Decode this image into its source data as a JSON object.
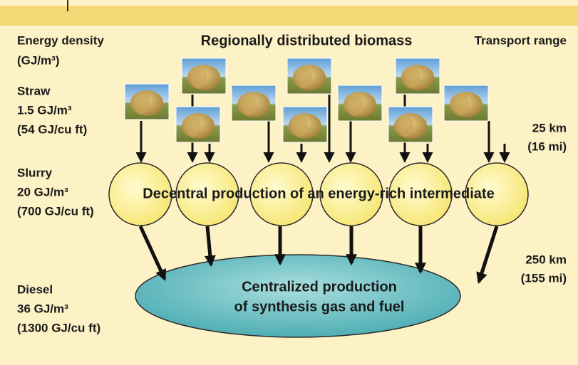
{
  "header": {
    "title": "Regionally distributed biomass",
    "left_heading": [
      "Energy density",
      "(GJ/m³)"
    ],
    "right_heading": "Transport range"
  },
  "levels": [
    {
      "name": "Straw",
      "density": "1.5 GJ/m³",
      "density_alt": "(54 GJ/cu ft)"
    },
    {
      "name": "Slurry",
      "density": "20 GJ/m³",
      "density_alt": "(700 GJ/cu ft)"
    },
    {
      "name": "Diesel",
      "density": "36 GJ/m³",
      "density_alt": "(1300 GJ/cu ft)"
    }
  ],
  "ranges": [
    [
      "25 km",
      "(16 mi)"
    ],
    [
      "250 km",
      "(155 mi)"
    ]
  ],
  "decentral": "Decentral production of an energy-rich intermediate",
  "central": [
    "Centralized production",
    "of synthesis gas and fuel"
  ]
}
